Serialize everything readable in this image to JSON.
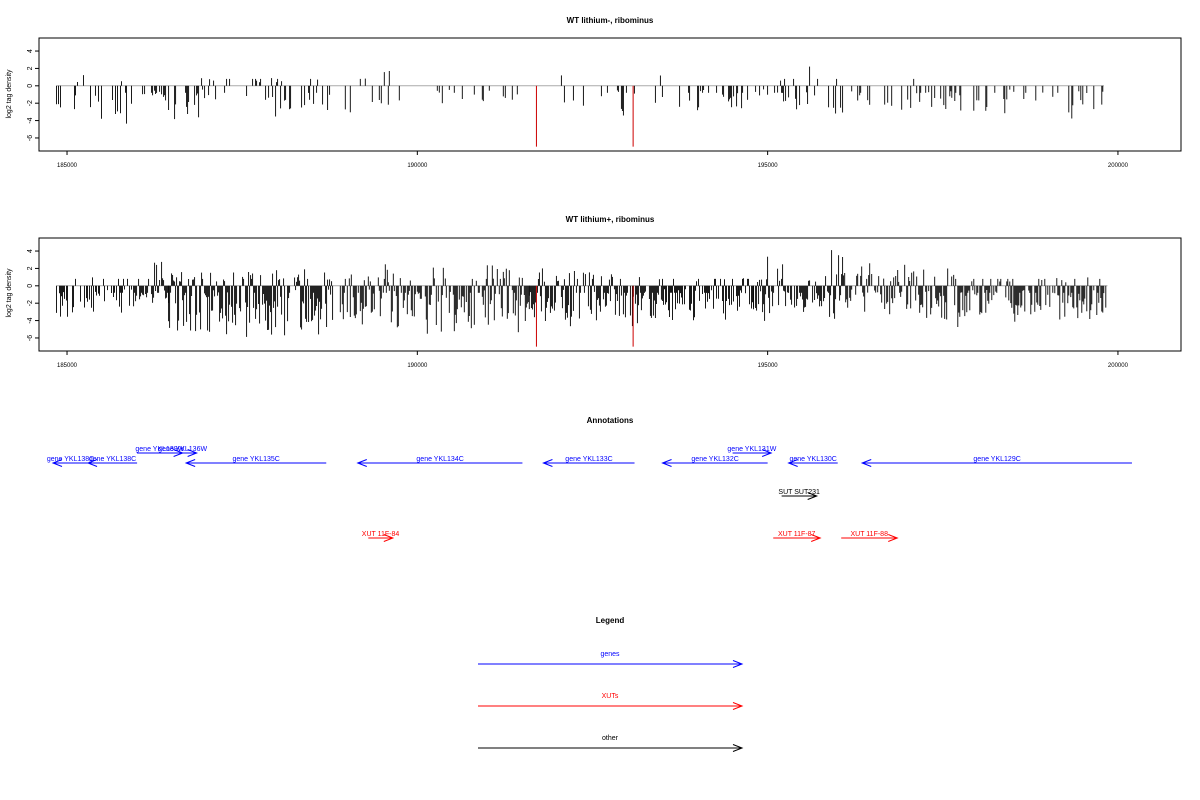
{
  "chart_data": [
    {
      "type": "bar",
      "title": "WT lithium-, ribominus",
      "xlabel": "",
      "ylabel": "log2 tag density",
      "xlim": [
        184600,
        200900
      ],
      "ylim": [
        -7.5,
        5.5
      ],
      "xticks": [
        185000,
        190000,
        195000,
        200000
      ],
      "xtick_labels": [
        "185000",
        "190000",
        "195000",
        "200000"
      ],
      "yticks": [
        4,
        2,
        0,
        -2,
        -4,
        -6
      ],
      "ytick_labels": [
        "4",
        "2",
        "0",
        "-2",
        "-4",
        "-6"
      ],
      "grid": false,
      "baseline_color": "#aaaaaa",
      "bar_color": "#000000",
      "highlight_color": "#cc0000",
      "highlights": [
        {
          "x": 191700,
          "y": -7
        },
        {
          "x": 193080,
          "y": -7
        }
      ],
      "signal_ranges": [
        {
          "x0": 184850,
          "x1": 185950,
          "density": 0.25,
          "min": -4.8,
          "max": 2.2
        },
        {
          "x0": 185950,
          "x1": 186450,
          "density": 0.35,
          "min": -2,
          "max": 4.2
        },
        {
          "x0": 186450,
          "x1": 188800,
          "density": 0.3,
          "min": -4.5,
          "max": 1.5
        },
        {
          "x0": 188900,
          "x1": 189800,
          "density": 0.2,
          "min": -4,
          "max": 2.8
        },
        {
          "x0": 190200,
          "x1": 191500,
          "density": 0.18,
          "min": -4,
          "max": 0
        },
        {
          "x0": 191900,
          "x1": 193500,
          "density": 0.18,
          "min": -4,
          "max": 2.5
        },
        {
          "x0": 193600,
          "x1": 194800,
          "density": 0.2,
          "min": -3.5,
          "max": 0
        },
        {
          "x0": 194800,
          "x1": 196100,
          "density": 0.28,
          "min": -4,
          "max": 3.2
        },
        {
          "x0": 196200,
          "x1": 197500,
          "density": 0.22,
          "min": -4,
          "max": 2
        },
        {
          "x0": 197500,
          "x1": 199800,
          "density": 0.22,
          "min": -4,
          "max": 0
        }
      ]
    },
    {
      "type": "bar",
      "title": "WT lithium+, ribominus",
      "xlabel": "",
      "ylabel": "log2 tag density",
      "xlim": [
        184600,
        200900
      ],
      "ylim": [
        -7.5,
        5.5
      ],
      "xticks": [
        185000,
        190000,
        195000,
        200000
      ],
      "xtick_labels": [
        "185000",
        "190000",
        "195000",
        "200000"
      ],
      "yticks": [
        4,
        2,
        0,
        -2,
        -4,
        -6
      ],
      "ytick_labels": [
        "4",
        "2",
        "0",
        "-2",
        "-4",
        "-6"
      ],
      "grid": false,
      "baseline_color": "#aaaaaa",
      "bar_color": "#000000",
      "highlight_color": "#cc0000",
      "highlights": [
        {
          "x": 191700,
          "y": -7
        },
        {
          "x": 193080,
          "y": -7
        }
      ],
      "signal_ranges": [
        {
          "x0": 184850,
          "x1": 185950,
          "density": 0.6,
          "min": -5.5,
          "max": 1.5
        },
        {
          "x0": 185950,
          "x1": 186450,
          "density": 0.8,
          "min": -3,
          "max": 4.8
        },
        {
          "x0": 186450,
          "x1": 188800,
          "density": 0.85,
          "min": -7,
          "max": 2.5
        },
        {
          "x0": 188900,
          "x1": 191600,
          "density": 0.75,
          "min": -6,
          "max": 3.8
        },
        {
          "x0": 191600,
          "x1": 193500,
          "density": 0.8,
          "min": -5,
          "max": 3
        },
        {
          "x0": 193500,
          "x1": 194800,
          "density": 0.75,
          "min": -4.5,
          "max": 1
        },
        {
          "x0": 194800,
          "x1": 196100,
          "density": 0.8,
          "min": -4.5,
          "max": 4.5
        },
        {
          "x0": 196100,
          "x1": 197700,
          "density": 0.7,
          "min": -4.5,
          "max": 2.7
        },
        {
          "x0": 197700,
          "x1": 199850,
          "density": 0.7,
          "min": -5,
          "max": 1
        }
      ]
    },
    {
      "type": "annotation_track",
      "title": "Annotations",
      "xlim": [
        184600,
        200900
      ],
      "features": [
        {
          "label": "gene YKL139W",
          "x0": 186000,
          "x1": 186650,
          "dir": 1,
          "row": 0,
          "cls": "gene"
        },
        {
          "label": "gene YKL136W",
          "x0": 186450,
          "x1": 186850,
          "dir": 1,
          "row": 0,
          "cls": "gene"
        },
        {
          "label": "gene YKL131W",
          "x0": 194500,
          "x1": 195050,
          "dir": 1,
          "row": 0,
          "cls": "gene"
        },
        {
          "label": "gene YKL138C",
          "x0": 184800,
          "x1": 185300,
          "dir": -1,
          "row": 1,
          "cls": "gene"
        },
        {
          "label": "gene YKL138C",
          "x0": 185300,
          "x1": 186000,
          "dir": -1,
          "row": 1,
          "cls": "gene"
        },
        {
          "label": "gene YKL135C",
          "x0": 186700,
          "x1": 188700,
          "dir": -1,
          "row": 1,
          "cls": "gene"
        },
        {
          "label": "gene YKL134C",
          "x0": 189150,
          "x1": 191500,
          "dir": -1,
          "row": 1,
          "cls": "gene"
        },
        {
          "label": "gene YKL133C",
          "x0": 191800,
          "x1": 193100,
          "dir": -1,
          "row": 1,
          "cls": "gene"
        },
        {
          "label": "gene YKL132C",
          "x0": 193500,
          "x1": 195000,
          "dir": -1,
          "row": 1,
          "cls": "gene"
        },
        {
          "label": "gene YKL130C",
          "x0": 195300,
          "x1": 196000,
          "dir": -1,
          "row": 1,
          "cls": "gene"
        },
        {
          "label": "gene YKL129C",
          "x0": 196350,
          "x1": 200200,
          "dir": -1,
          "row": 1,
          "cls": "gene"
        },
        {
          "label": "SUT SUT231",
          "x0": 195200,
          "x1": 195700,
          "dir": 1,
          "row": 2,
          "cls": "other"
        },
        {
          "label": "XUT 11F-84",
          "x0": 189300,
          "x1": 189650,
          "dir": 1,
          "row": 3,
          "cls": "xut"
        },
        {
          "label": "XUT 11F-87",
          "x0": 195080,
          "x1": 195750,
          "dir": 1,
          "row": 3,
          "cls": "xut"
        },
        {
          "label": "XUT 11F-88",
          "x0": 196050,
          "x1": 196850,
          "dir": 1,
          "row": 3,
          "cls": "xut"
        }
      ]
    },
    {
      "type": "legend",
      "title": "Legend",
      "entries": [
        {
          "label": "genes",
          "color": "#0000ff"
        },
        {
          "label": "XUTs",
          "color": "#ff0000"
        },
        {
          "label": "other",
          "color": "#000000"
        }
      ]
    }
  ]
}
